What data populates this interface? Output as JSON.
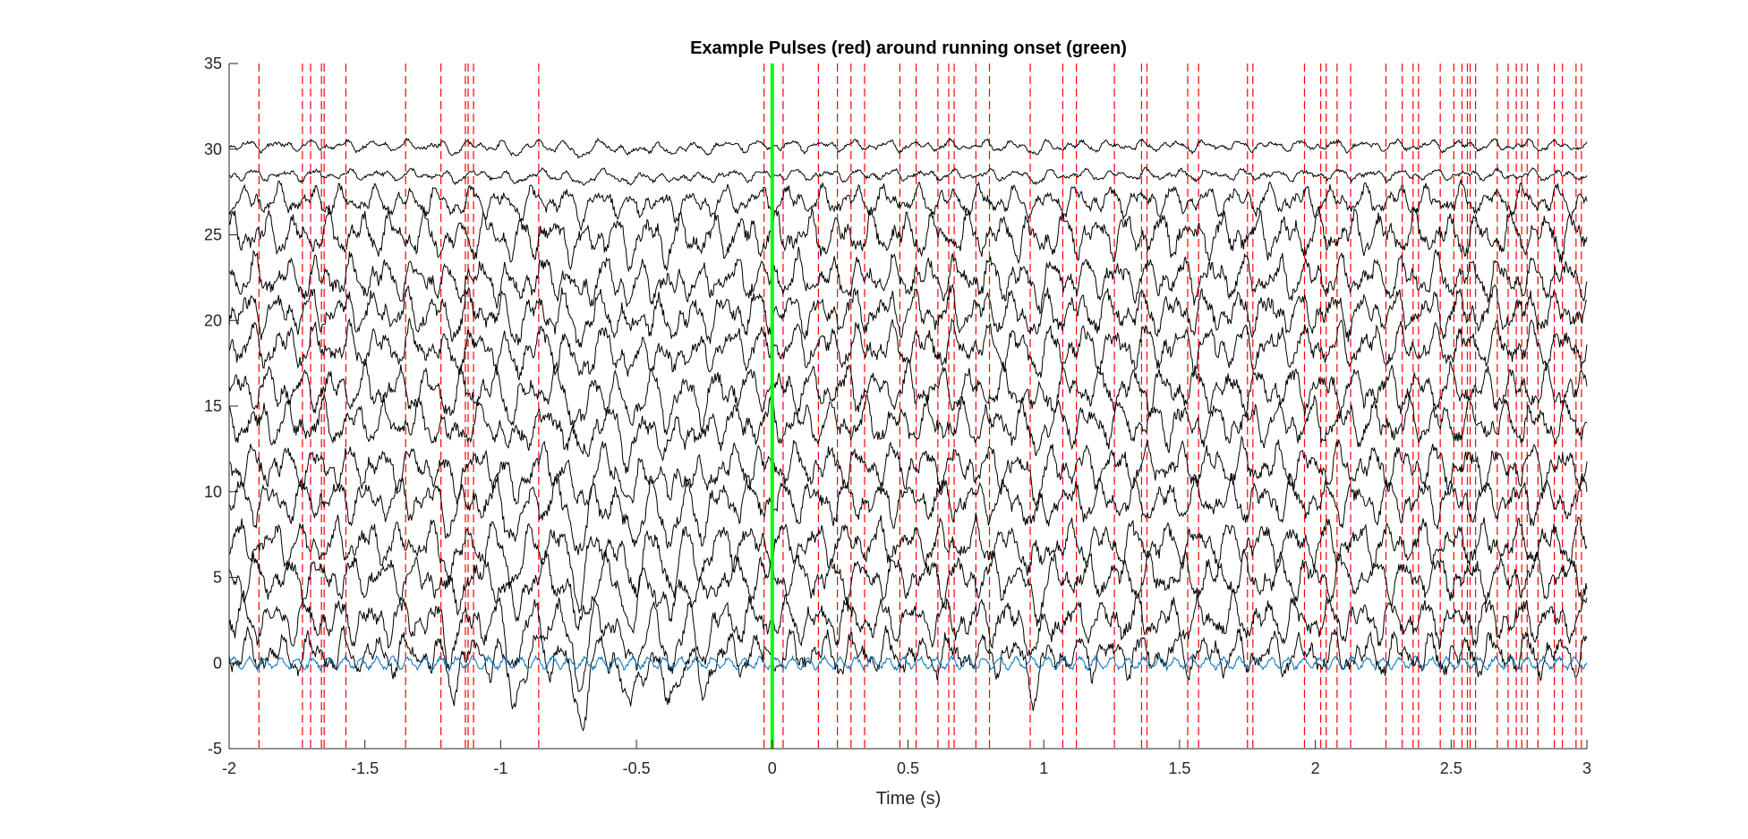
{
  "chart_data": {
    "type": "line",
    "title": "Example Pulses (red) around running onset (green)",
    "xlabel": "Time (s)",
    "ylabel": "",
    "xlim": [
      -2,
      3
    ],
    "ylim": [
      -5,
      35
    ],
    "x_ticks": [
      "-2",
      "-1.5",
      "-1",
      "-0.5",
      "0",
      "0.5",
      "1",
      "1.5",
      "2",
      "2.5",
      "3"
    ],
    "y_ticks": [
      "-5",
      "0",
      "5",
      "10",
      "15",
      "20",
      "25",
      "30",
      "35"
    ],
    "grid": false,
    "legend": "none",
    "onset_time": 0,
    "pulse_times": [
      -1.89,
      -1.73,
      -1.7,
      -1.66,
      -1.65,
      -1.57,
      -1.35,
      -1.22,
      -1.13,
      -1.12,
      -1.1,
      -0.86,
      -0.03,
      0.04,
      0.17,
      0.24,
      0.29,
      0.34,
      0.47,
      0.53,
      0.61,
      0.65,
      0.67,
      0.75,
      0.8,
      0.95,
      1.07,
      1.12,
      1.26,
      1.36,
      1.38,
      1.53,
      1.57,
      1.75,
      1.77,
      1.96,
      2.02,
      2.04,
      2.08,
      2.13,
      2.26,
      2.32,
      2.36,
      2.38,
      2.46,
      2.51,
      2.54,
      2.56,
      2.57,
      2.59,
      2.67,
      2.71,
      2.74,
      2.76,
      2.78,
      2.82,
      2.88,
      2.91,
      2.96,
      2.98
    ],
    "traces": {
      "black_offsets": [
        0.5,
        2.5,
        5,
        7,
        9.5,
        11.5,
        14,
        16,
        18.5,
        20.5,
        22.5,
        25,
        27,
        28.5,
        30.2
      ],
      "blue_offset": 0
    },
    "colors": {
      "pulse": "#ff0000",
      "onset": "#00ff00",
      "trace": "#000000",
      "reference": "#0072bd",
      "axis": "#262626"
    }
  }
}
